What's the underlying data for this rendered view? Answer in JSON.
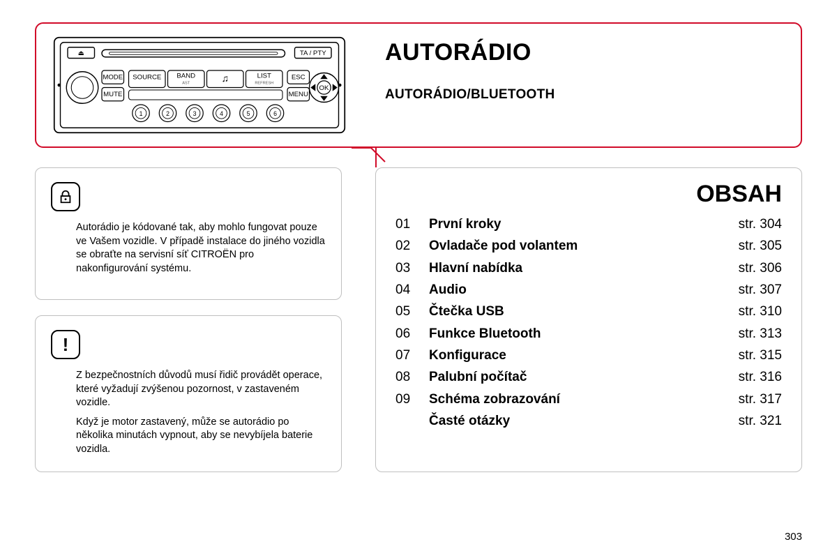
{
  "colors": {
    "accent": "#d10b29",
    "grey_border": "#bfbfbf",
    "text": "#000000",
    "bg": "#ffffff"
  },
  "header": {
    "title": "AUTORÁDIO",
    "subtitle": "AUTORÁDIO/BLUETOOTH"
  },
  "radio": {
    "buttons_top": [
      {
        "label": "SOURCE",
        "sub": ""
      },
      {
        "label": "BAND",
        "sub": "AST"
      },
      {
        "label": "♫",
        "sub": ""
      },
      {
        "label": "LIST",
        "sub": "REFRESH"
      }
    ],
    "side_left": [
      "MODE",
      "MUTE"
    ],
    "side_right": [
      "ESC",
      "MENU"
    ],
    "top_right_btn": "TA / PTY",
    "eject_glyph": "⏏",
    "ok_label": "OK",
    "preset_numbers": [
      "1",
      "2",
      "3",
      "4",
      "5",
      "6"
    ]
  },
  "info_lock": {
    "text": "Autorádio je kódované tak, aby mohlo fungovat pouze ve Vašem vozidle. V případě instalace do jiného vozidla se obraťte na servisní síť CITROËN pro nakonfigurování systému."
  },
  "info_warn": {
    "p1": "Z bezpečnostních důvodů musí řidič provádět operace, které vyžadují zvýšenou pozornost, v zastaveném vozidle.",
    "p2": "Když je motor zastavený, může se autorádio po několika minutách vypnout, aby se nevybíjela baterie vozidla."
  },
  "contents": {
    "title": "OBSAH",
    "page_prefix": "str.",
    "items": [
      {
        "num": "01",
        "label": "První kroky",
        "page": "304"
      },
      {
        "num": "02",
        "label": "Ovladače pod volantem",
        "page": "305"
      },
      {
        "num": "03",
        "label": "Hlavní nabídka",
        "page": "306"
      },
      {
        "num": "04",
        "label": "Audio",
        "page": "307"
      },
      {
        "num": "05",
        "label": "Čtečka USB",
        "page": "310"
      },
      {
        "num": "06",
        "label": "Funkce Bluetooth",
        "page": "313"
      },
      {
        "num": "07",
        "label": "Konfigurace",
        "page": "315"
      },
      {
        "num": "08",
        "label": "Palubní počítač",
        "page": "316"
      },
      {
        "num": "09",
        "label": "Schéma zobrazování",
        "page": "317"
      },
      {
        "num": "",
        "label": "Časté otázky",
        "page": "321"
      }
    ]
  },
  "page_number": "303"
}
